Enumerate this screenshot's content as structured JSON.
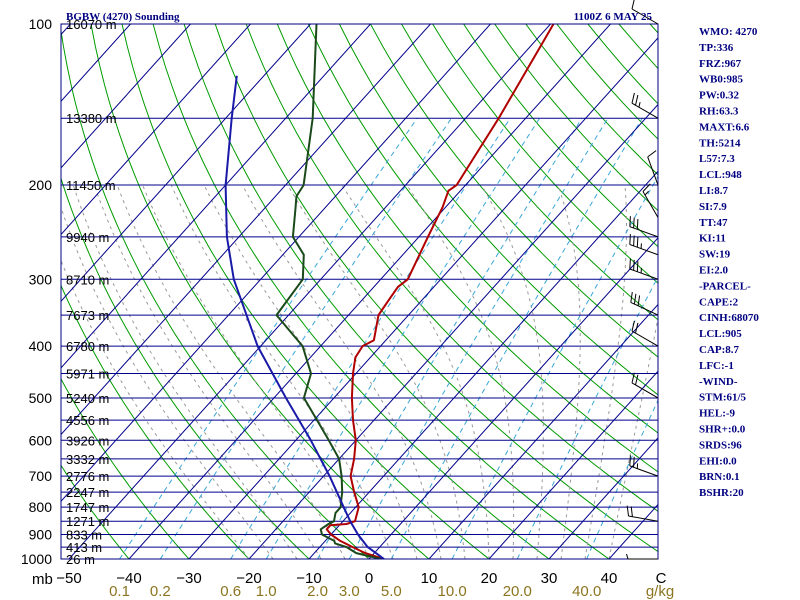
{
  "header": {
    "station": "BGBW (4270) Sounding",
    "datetime": "1100Z  6 MAY 25"
  },
  "indices": [
    "WMO: 4270",
    "TP:336",
    "FRZ:967",
    "WB0:985",
    "PW:0.32",
    "RH:63.3",
    "MAXT:6.6",
    "TH:5214",
    "L57:7.3",
    "LCL:948",
    "LI:8.7",
    "SI:7.9",
    "TT:47",
    "KI:11",
    "SW:19",
    "EI:2.0",
    "-PARCEL-",
    "CAPE:2",
    "CINH:68070",
    "LCL:905",
    "CAP:8.7",
    "LFC:-1",
    "-WIND-",
    "STM:61/5",
    "HEL:-9",
    "SHR+:0.0",
    "SRDS:96",
    "EHI:0.0",
    "BRN:0.1",
    "BSHR:20"
  ],
  "chart_data": {
    "type": "line",
    "chart_kind": "skew-T log-P sounding",
    "pressure_axis": {
      "unit_label": "mb",
      "scale": "log",
      "range": [
        1000,
        100
      ],
      "ticks": [
        100,
        200,
        300,
        400,
        500,
        600,
        700,
        800,
        900,
        1000
      ]
    },
    "temperature_axis": {
      "ticks": [
        -50,
        -40,
        -30,
        -20,
        -10,
        0,
        10,
        20,
        30,
        40
      ],
      "unit_label": "C"
    },
    "mixing_ratio_axis": {
      "unit_label": "g/kg",
      "labels": [
        "0.1",
        "0.2",
        "0.6",
        "1.0",
        "2.0",
        "3.0",
        "5.0",
        "10.0",
        "20.0",
        "40.0"
      ],
      "values": [
        0.1,
        0.2,
        0.6,
        1.0,
        2.0,
        3.0,
        5.0,
        10.0,
        20.0,
        40.0
      ]
    },
    "height_labels": [
      {
        "p": 100,
        "text": "16070 m"
      },
      {
        "p": 150,
        "text": "13380 m"
      },
      {
        "p": 200,
        "text": "11450 m"
      },
      {
        "p": 250,
        "text": "9940 m"
      },
      {
        "p": 300,
        "text": "8710 m"
      },
      {
        "p": 350,
        "text": "7673 m"
      },
      {
        "p": 400,
        "text": "6780 m"
      },
      {
        "p": 450,
        "text": "5971 m"
      },
      {
        "p": 500,
        "text": "5240 m"
      },
      {
        "p": 550,
        "text": "4556 m"
      },
      {
        "p": 600,
        "text": "3926 m"
      },
      {
        "p": 650,
        "text": "3332 m"
      },
      {
        "p": 700,
        "text": "2776 m"
      },
      {
        "p": 750,
        "text": "2247 m"
      },
      {
        "p": 800,
        "text": "1747 m"
      },
      {
        "p": 850,
        "text": "1271 m"
      },
      {
        "p": 900,
        "text": "833 m"
      },
      {
        "p": 950,
        "text": "413 m"
      },
      {
        "p": 1000,
        "text": "26 m"
      }
    ],
    "series": [
      {
        "role": "temperature",
        "color": "#b00000",
        "points": [
          {
            "p": 1000,
            "t": 2.5
          },
          {
            "p": 975,
            "t": -1.5
          },
          {
            "p": 950,
            "t": -4.5
          },
          {
            "p": 925,
            "t": -7.5
          },
          {
            "p": 900,
            "t": -10.0
          },
          {
            "p": 880,
            "t": -11.5
          },
          {
            "p": 865,
            "t": -11.5
          },
          {
            "p": 860,
            "t": -9.0
          },
          {
            "p": 850,
            "t": -8.0
          },
          {
            "p": 800,
            "t": -9.5
          },
          {
            "p": 750,
            "t": -12.5
          },
          {
            "p": 700,
            "t": -15.5
          },
          {
            "p": 650,
            "t": -17.5
          },
          {
            "p": 600,
            "t": -20.0
          },
          {
            "p": 550,
            "t": -23.5
          },
          {
            "p": 500,
            "t": -27.0
          },
          {
            "p": 450,
            "t": -30.5
          },
          {
            "p": 420,
            "t": -32.5
          },
          {
            "p": 400,
            "t": -33.0
          },
          {
            "p": 390,
            "t": -32.0
          },
          {
            "p": 350,
            "t": -35.0
          },
          {
            "p": 330,
            "t": -35.5
          },
          {
            "p": 310,
            "t": -36.0
          },
          {
            "p": 300,
            "t": -35.5
          },
          {
            "p": 250,
            "t": -38.5
          },
          {
            "p": 220,
            "t": -40.5
          },
          {
            "p": 205,
            "t": -42.0
          },
          {
            "p": 200,
            "t": -41.5
          },
          {
            "p": 150,
            "t": -44.5
          },
          {
            "p": 100,
            "t": -49.5
          }
        ]
      },
      {
        "role": "dewpoint",
        "color": "#1a4a1a",
        "points": [
          {
            "p": 1000,
            "t": 2.0
          },
          {
            "p": 975,
            "t": -3.0
          },
          {
            "p": 950,
            "t": -5.5
          },
          {
            "p": 935,
            "t": -8.0
          },
          {
            "p": 925,
            "t": -8.5
          },
          {
            "p": 900,
            "t": -11.5
          },
          {
            "p": 880,
            "t": -12.5
          },
          {
            "p": 860,
            "t": -12.0
          },
          {
            "p": 850,
            "t": -11.5
          },
          {
            "p": 820,
            "t": -12.5
          },
          {
            "p": 800,
            "t": -12.5
          },
          {
            "p": 775,
            "t": -13.5
          },
          {
            "p": 750,
            "t": -14.5
          },
          {
            "p": 700,
            "t": -17.0
          },
          {
            "p": 650,
            "t": -20.0
          },
          {
            "p": 600,
            "t": -24.5
          },
          {
            "p": 550,
            "t": -29.5
          },
          {
            "p": 500,
            "t": -35.0
          },
          {
            "p": 450,
            "t": -37.5
          },
          {
            "p": 400,
            "t": -43.0
          },
          {
            "p": 350,
            "t": -52.0
          },
          {
            "p": 300,
            "t": -53.0
          },
          {
            "p": 270,
            "t": -56.5
          },
          {
            "p": 250,
            "t": -61.0
          },
          {
            "p": 220,
            "t": -65.0
          },
          {
            "p": 210,
            "t": -66.5
          },
          {
            "p": 200,
            "t": -67.0
          },
          {
            "p": 150,
            "t": -75.5
          },
          {
            "p": 100,
            "t": -89.0
          }
        ]
      },
      {
        "role": "parcel",
        "color": "#1a1aa8",
        "points": [
          {
            "p": 1000,
            "t": 2.5
          },
          {
            "p": 950,
            "t": -2.0
          },
          {
            "p": 900,
            "t": -5.5
          },
          {
            "p": 850,
            "t": -8.8
          },
          {
            "p": 800,
            "t": -12.0
          },
          {
            "p": 700,
            "t": -19.0
          },
          {
            "p": 600,
            "t": -27.5
          },
          {
            "p": 500,
            "t": -38.0
          },
          {
            "p": 400,
            "t": -50.5
          },
          {
            "p": 300,
            "t": -64.5
          },
          {
            "p": 250,
            "t": -72.0
          },
          {
            "p": 200,
            "t": -80.0
          },
          {
            "p": 150,
            "t": -89.0
          },
          {
            "p": 125,
            "t": -94.5
          }
        ]
      }
    ],
    "wind_barbs": [
      {
        "p": 1000,
        "dir": 270,
        "spd": 5
      },
      {
        "p": 850,
        "dir": 280,
        "spd": 20
      },
      {
        "p": 700,
        "dir": 290,
        "spd": 25
      },
      {
        "p": 500,
        "dir": 300,
        "spd": 20
      },
      {
        "p": 400,
        "dir": 300,
        "spd": 20
      },
      {
        "p": 350,
        "dir": 295,
        "spd": 30
      },
      {
        "p": 300,
        "dir": 290,
        "spd": 35
      },
      {
        "p": 270,
        "dir": 290,
        "spd": 35
      },
      {
        "p": 250,
        "dir": 290,
        "spd": 30
      },
      {
        "p": 230,
        "dir": 330,
        "spd": 15
      },
      {
        "p": 200,
        "dir": 340,
        "spd": 10
      },
      {
        "p": 150,
        "dir": 300,
        "spd": 25
      },
      {
        "p": 100,
        "dir": 300,
        "spd": 10
      }
    ],
    "colors": {
      "isobar": "#00008b",
      "skewed_isotherm": "#00008b",
      "dry_adiabat": "#009b00",
      "moist_adiabat": "#9a9a9a",
      "mixing_ratio": "#3aa6d8",
      "wind": "#000000"
    }
  }
}
